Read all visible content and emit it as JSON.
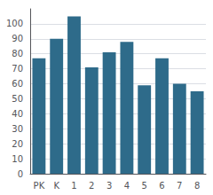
{
  "chart_data": {
    "type": "bar",
    "categories": [
      "PK",
      "K",
      "1",
      "2",
      "3",
      "4",
      "5",
      "6",
      "7",
      "8"
    ],
    "values": [
      77,
      90,
      105,
      71,
      81,
      88,
      59,
      77,
      60,
      55
    ],
    "color": "#2e6b8a",
    "ylim": [
      0,
      110
    ],
    "yticks": [
      0,
      10,
      20,
      30,
      40,
      50,
      60,
      70,
      80,
      90,
      100
    ],
    "grid": true
  }
}
